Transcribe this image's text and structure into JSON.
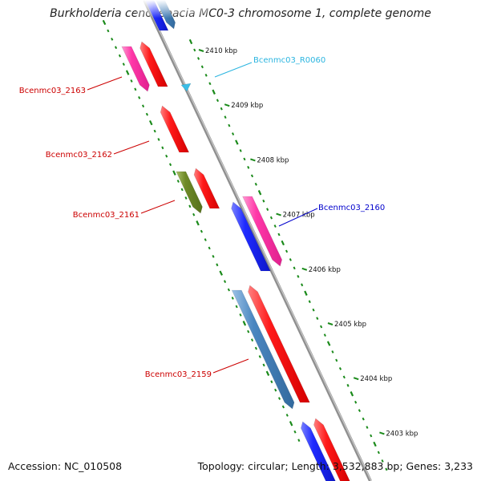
{
  "title": "Burkholderia cenocepacia MC0-3 chromosome 1, complete genome",
  "footer": {
    "accession": "Accession: NC_010508",
    "topology": "Topology: circular; Length: 3,532,883 bp; Genes: 3,233"
  },
  "colors": {
    "backbone": "#8f8f8f",
    "tick": "#1a8a1a",
    "red": "#ff1a1a",
    "magenta": "#ff38a8",
    "blue": "#1f2bff",
    "steelblue": "#4a86c0",
    "olive": "#6f8a28",
    "cyan": "#3bbde6",
    "label_red": "#cc0000",
    "label_blue": "#0000cc",
    "label_cyan": "#2bb5e0"
  },
  "scale_labels": [
    "2410 kbp",
    "2409 kbp",
    "2408 kbp",
    "2407 kbp",
    "2406 kbp",
    "2405 kbp",
    "2404 kbp",
    "2403 kbp"
  ],
  "gene_labels": {
    "g2163": "Bcenmc03_2163",
    "g2162": "Bcenmc03_2162",
    "g2161": "Bcenmc03_2161",
    "g2160": "Bcenmc03_2160",
    "g2159": "Bcenmc03_2159",
    "r0060": "Bcenmc03_R0060"
  },
  "features": [
    {
      "name": "top-blue-feature",
      "color": "blue"
    },
    {
      "name": "top-steelblue-feature",
      "color": "steelblue"
    },
    {
      "name": "bcenmc03-2163-feature",
      "color": "magenta",
      "label": "Bcenmc03_2163"
    },
    {
      "name": "red-feature-2163-adjacent",
      "color": "red"
    },
    {
      "name": "bcenmc03-r0060-feature",
      "color": "cyan",
      "label": "Bcenmc03_R0060"
    },
    {
      "name": "bcenmc03-2162-feature",
      "color": "red",
      "label": "Bcenmc03_2162"
    },
    {
      "name": "bcenmc03-2161-feature",
      "color": "olive",
      "label": "Bcenmc03_2161"
    },
    {
      "name": "red-feature-2161-adjacent",
      "color": "red"
    },
    {
      "name": "blue-feature-2160-adjacent",
      "color": "blue"
    },
    {
      "name": "bcenmc03-2160-feature",
      "color": "magenta",
      "label": "Bcenmc03_2160"
    },
    {
      "name": "steelblue-feature-2159-adjacent",
      "color": "steelblue"
    },
    {
      "name": "bcenmc03-2159-feature",
      "color": "red",
      "label": "Bcenmc03_2159"
    },
    {
      "name": "bottom-blue-feature",
      "color": "blue"
    },
    {
      "name": "bottom-red-feature",
      "color": "red"
    }
  ]
}
